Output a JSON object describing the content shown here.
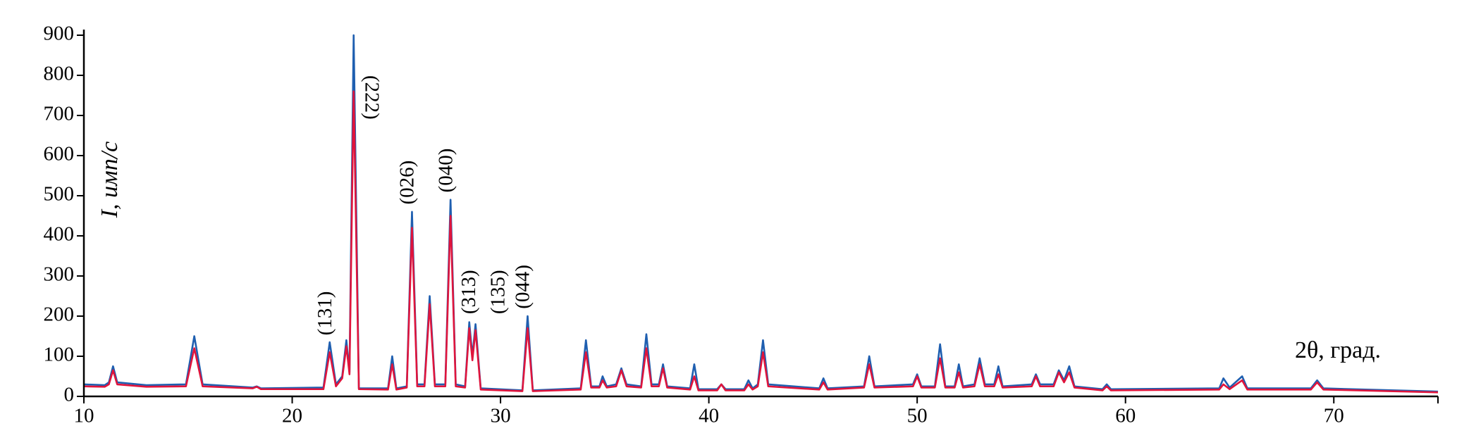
{
  "chart_data": {
    "type": "line",
    "x_label": "2θ, град.",
    "y_label": "I, имп/с",
    "annotations": [
      "(131)",
      "(222)",
      "(026)",
      "(040)",
      "(313)",
      "(135)",
      "(044)"
    ],
    "x": [
      10,
      11,
      11.2,
      11.4,
      11.6,
      13,
      14.9,
      15.3,
      15.7,
      18.1,
      18.3,
      18.5,
      21.5,
      21.8,
      22.1,
      22.4,
      22.6,
      22.75,
      22.95,
      23.2,
      24.6,
      24.8,
      25.0,
      25.5,
      25.75,
      26.0,
      26.35,
      26.6,
      26.85,
      27.35,
      27.6,
      27.85,
      28.3,
      28.5,
      28.65,
      28.8,
      29.05,
      31.05,
      31.3,
      31.55,
      33.85,
      34.1,
      34.35,
      34.75,
      34.9,
      35.1,
      35.55,
      35.8,
      36.05,
      36.75,
      37.0,
      37.25,
      37.6,
      37.8,
      38.0,
      39.1,
      39.3,
      39.5,
      40.4,
      40.6,
      40.8,
      41.7,
      41.9,
      42.1,
      42.35,
      42.6,
      42.85,
      45.3,
      45.5,
      45.7,
      47.45,
      47.7,
      47.95,
      49.8,
      50.0,
      50.2,
      50.85,
      51.1,
      51.35,
      51.8,
      52.0,
      52.2,
      52.75,
      53.0,
      53.25,
      53.7,
      53.9,
      54.1,
      55.5,
      55.7,
      55.9,
      56.55,
      56.8,
      57.05,
      57.3,
      57.55,
      58.9,
      59.1,
      59.3,
      64.5,
      64.7,
      65.0,
      65.6,
      65.85,
      68.9,
      69.2,
      69.5,
      75
    ],
    "series": [
      {
        "color": "#1f5fb0",
        "values": [
          30,
          28,
          35,
          75,
          35,
          28,
          30,
          150,
          30,
          22,
          25,
          20,
          22,
          135,
          30,
          50,
          140,
          60,
          900,
          20,
          20,
          100,
          20,
          25,
          460,
          30,
          30,
          250,
          30,
          30,
          490,
          30,
          25,
          185,
          100,
          180,
          20,
          15,
          200,
          15,
          20,
          140,
          25,
          25,
          50,
          25,
          30,
          70,
          30,
          25,
          155,
          30,
          30,
          80,
          25,
          20,
          80,
          18,
          18,
          30,
          18,
          18,
          40,
          20,
          30,
          140,
          30,
          20,
          45,
          20,
          25,
          100,
          25,
          30,
          55,
          25,
          25,
          130,
          25,
          25,
          80,
          25,
          30,
          95,
          30,
          30,
          75,
          25,
          30,
          55,
          30,
          30,
          65,
          40,
          75,
          25,
          18,
          30,
          18,
          20,
          45,
          22,
          50,
          20,
          20,
          40,
          20,
          12
        ]
      },
      {
        "color": "#e0143c",
        "values": [
          25,
          24,
          30,
          65,
          30,
          24,
          25,
          120,
          25,
          20,
          24,
          18,
          18,
          110,
          25,
          45,
          125,
          55,
          760,
          18,
          17,
          80,
          17,
          22,
          420,
          25,
          25,
          230,
          25,
          25,
          450,
          25,
          22,
          170,
          90,
          165,
          17,
          13,
          170,
          13,
          17,
          110,
          22,
          22,
          40,
          22,
          25,
          65,
          25,
          22,
          120,
          25,
          25,
          70,
          22,
          17,
          50,
          15,
          15,
          30,
          15,
          15,
          30,
          17,
          25,
          110,
          25,
          17,
          35,
          17,
          22,
          80,
          22,
          25,
          50,
          22,
          22,
          95,
          22,
          22,
          60,
          22,
          25,
          80,
          25,
          25,
          55,
          22,
          25,
          50,
          25,
          25,
          60,
          35,
          60,
          22,
          15,
          25,
          15,
          17,
          30,
          18,
          40,
          17,
          17,
          35,
          17,
          10
        ]
      }
    ],
    "xlim": [
      10,
      75
    ],
    "xticks": [
      10,
      20,
      30,
      40,
      50,
      60,
      70
    ],
    "ylim": [
      0,
      900
    ],
    "yticks": [
      0,
      100,
      200,
      300,
      400,
      500,
      600,
      700,
      800,
      900
    ],
    "grid": false
  }
}
